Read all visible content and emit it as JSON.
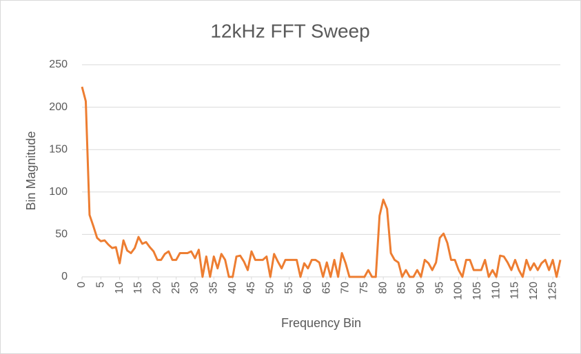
{
  "chart_data": {
    "type": "line",
    "title": "12kHz FFT Sweep",
    "x_label": "Frequency Bin",
    "y_label": "Bin Magnitude",
    "x": [
      0,
      1,
      2,
      3,
      4,
      5,
      6,
      7,
      8,
      9,
      10,
      11,
      12,
      13,
      14,
      15,
      16,
      17,
      18,
      19,
      20,
      21,
      22,
      23,
      24,
      25,
      26,
      27,
      28,
      29,
      30,
      31,
      32,
      33,
      34,
      35,
      36,
      37,
      38,
      39,
      40,
      41,
      42,
      43,
      44,
      45,
      46,
      47,
      48,
      49,
      50,
      51,
      52,
      53,
      54,
      55,
      56,
      57,
      58,
      59,
      60,
      61,
      62,
      63,
      64,
      65,
      66,
      67,
      68,
      69,
      70,
      71,
      72,
      73,
      74,
      75,
      76,
      77,
      78,
      79,
      80,
      81,
      82,
      83,
      84,
      85,
      86,
      87,
      88,
      89,
      90,
      91,
      92,
      93,
      94,
      95,
      96,
      97,
      98,
      99,
      100,
      101,
      102,
      103,
      104,
      105,
      106,
      107,
      108,
      109,
      110,
      111,
      112,
      113,
      114,
      115,
      116,
      117,
      118,
      119,
      120,
      121,
      122,
      123,
      124,
      125,
      126,
      127
    ],
    "series": [
      {
        "color": "#ed7d31",
        "values": [
          224,
          207,
          73,
          60,
          46,
          42,
          43,
          38,
          34,
          35,
          16,
          43,
          31,
          28,
          34,
          47,
          39,
          41,
          35,
          30,
          20,
          20,
          27,
          30,
          20,
          20,
          28,
          28,
          28,
          30,
          22,
          32,
          0,
          24,
          0,
          24,
          10,
          27,
          20,
          0,
          0,
          24,
          25,
          18,
          8,
          30,
          20,
          20,
          20,
          24,
          0,
          27,
          18,
          10,
          20,
          20,
          20,
          20,
          0,
          16,
          10,
          20,
          20,
          17,
          0,
          17,
          0,
          20,
          0,
          28,
          16,
          0,
          0,
          0,
          0,
          0,
          8,
          0,
          0,
          72,
          91,
          80,
          28,
          20,
          17,
          0,
          8,
          0,
          0,
          8,
          0,
          20,
          16,
          8,
          17,
          46,
          51,
          40,
          20,
          20,
          8,
          0,
          20,
          20,
          8,
          8,
          8,
          20,
          0,
          8,
          0,
          25,
          24,
          17,
          8,
          20,
          8,
          0,
          20,
          8,
          16,
          8,
          16,
          20,
          8,
          20,
          0,
          20
        ]
      }
    ],
    "xlim": [
      0,
      127
    ],
    "xticks": [
      0,
      5,
      10,
      15,
      20,
      25,
      30,
      35,
      40,
      45,
      50,
      55,
      60,
      65,
      70,
      75,
      80,
      85,
      90,
      95,
      100,
      105,
      110,
      115,
      120,
      125
    ],
    "ylim": [
      0,
      250
    ],
    "yticks": [
      0,
      50,
      100,
      150,
      200,
      250
    ],
    "grid": true
  }
}
